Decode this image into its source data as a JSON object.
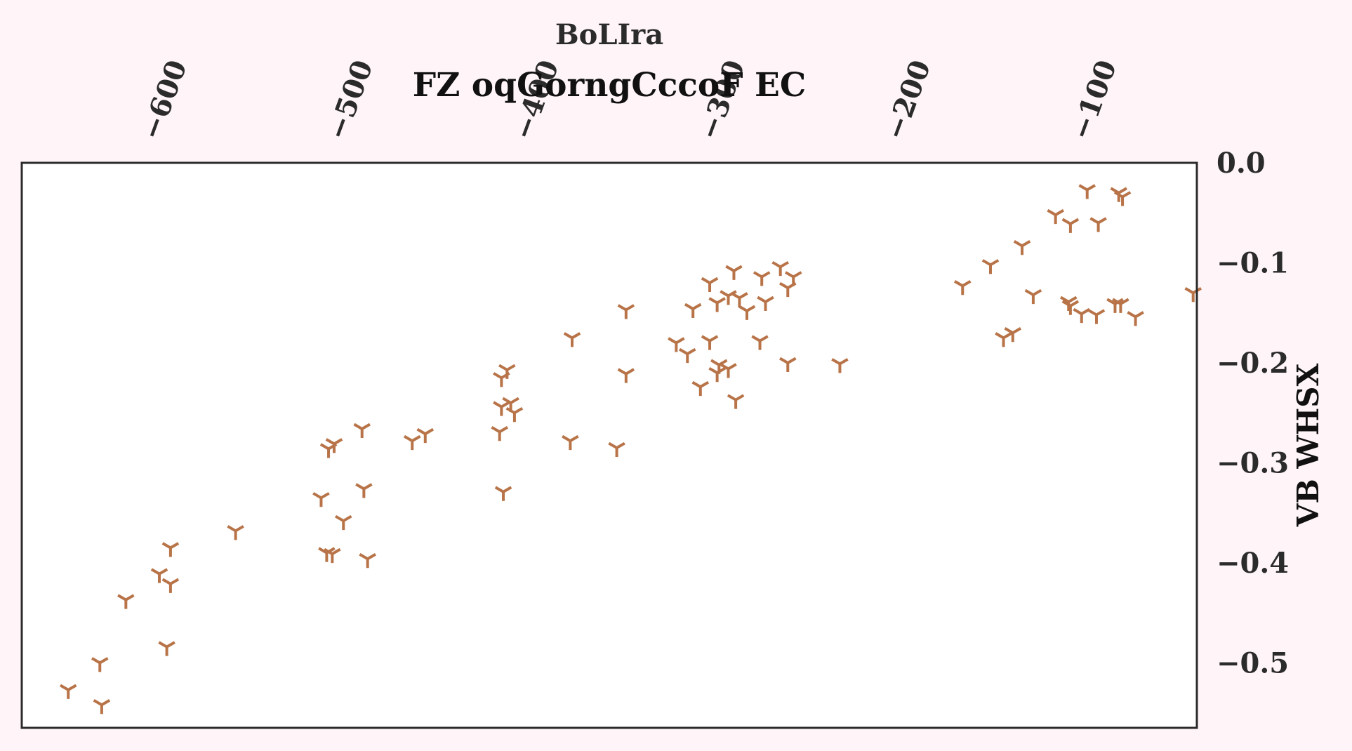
{
  "chart_data": {
    "type": "scatter",
    "title": "FZ  oqGorngCccoF EC",
    "xlabel": "BoLIra",
    "ylabel": "VB  WHSX",
    "xlim": [
      -670,
      -38
    ],
    "ylim": [
      -0.565,
      0.0
    ],
    "x_ticks": [
      -600,
      -500,
      -400,
      -300,
      -200,
      -100
    ],
    "x_tick_labels": [
      "−600",
      "−500",
      "−400",
      "−300",
      "−200",
      "−100"
    ],
    "y_ticks": [
      0.0,
      -0.1,
      -0.2,
      -0.3,
      -0.4,
      -0.5
    ],
    "y_tick_labels": [
      "0.0",
      "−0.1",
      "−0.2",
      "−0.3",
      "−0.4",
      "−0.5"
    ],
    "x_axis_position": "top",
    "y_axis_position": "right",
    "grid": false,
    "marker": "tri_down",
    "color": "#b87448",
    "points": [
      [
        -97,
        -0.027
      ],
      [
        -80,
        -0.03
      ],
      [
        -78,
        -0.034
      ],
      [
        -114,
        -0.052
      ],
      [
        -106,
        -0.061
      ],
      [
        -91,
        -0.06
      ],
      [
        -132,
        -0.083
      ],
      [
        -149,
        -0.102
      ],
      [
        -126,
        -0.132
      ],
      [
        -164,
        -0.123
      ],
      [
        -107,
        -0.139
      ],
      [
        -92,
        -0.152
      ],
      [
        -100,
        -0.151
      ],
      [
        -40,
        -0.13
      ],
      [
        -82,
        -0.141
      ],
      [
        -71,
        -0.154
      ],
      [
        -79,
        -0.141
      ],
      [
        -137,
        -0.17
      ],
      [
        -142,
        -0.175
      ],
      [
        -106,
        -0.143
      ],
      [
        -287,
        -0.108
      ],
      [
        -262,
        -0.104
      ],
      [
        -272,
        -0.114
      ],
      [
        -255,
        -0.114
      ],
      [
        -258,
        -0.125
      ],
      [
        -270,
        -0.139
      ],
      [
        -300,
        -0.12
      ],
      [
        -290,
        -0.133
      ],
      [
        -296,
        -0.14
      ],
      [
        -284,
        -0.135
      ],
      [
        -309,
        -0.146
      ],
      [
        -280,
        -0.148
      ],
      [
        -318,
        -0.18
      ],
      [
        -312,
        -0.191
      ],
      [
        -300,
        -0.178
      ],
      [
        -273,
        -0.178
      ],
      [
        -295,
        -0.202
      ],
      [
        -290,
        -0.206
      ],
      [
        -296,
        -0.21
      ],
      [
        -258,
        -0.2
      ],
      [
        -230,
        -0.201
      ],
      [
        -286,
        -0.237
      ],
      [
        -305,
        -0.224
      ],
      [
        -345,
        -0.147
      ],
      [
        -345,
        -0.211
      ],
      [
        -374,
        -0.175
      ],
      [
        -409,
        -0.207
      ],
      [
        -412,
        -0.215
      ],
      [
        -412,
        -0.244
      ],
      [
        -407,
        -0.24
      ],
      [
        -405,
        -0.25
      ],
      [
        -413,
        -0.269
      ],
      [
        -411,
        -0.329
      ],
      [
        -375,
        -0.278
      ],
      [
        -350,
        -0.285
      ],
      [
        -453,
        -0.271
      ],
      [
        -460,
        -0.278
      ],
      [
        -487,
        -0.266
      ],
      [
        -486,
        -0.326
      ],
      [
        -502,
        -0.281
      ],
      [
        -505,
        -0.286
      ],
      [
        -497,
        -0.358
      ],
      [
        -509,
        -0.335
      ],
      [
        -506,
        -0.39
      ],
      [
        -503,
        -0.391
      ],
      [
        -484,
        -0.396
      ],
      [
        -555,
        -0.368
      ],
      [
        -590,
        -0.385
      ],
      [
        -596,
        -0.411
      ],
      [
        -590,
        -0.421
      ],
      [
        -614,
        -0.437
      ],
      [
        -592,
        -0.484
      ],
      [
        -628,
        -0.5
      ],
      [
        -645,
        -0.527
      ],
      [
        -627,
        -0.542
      ]
    ]
  }
}
